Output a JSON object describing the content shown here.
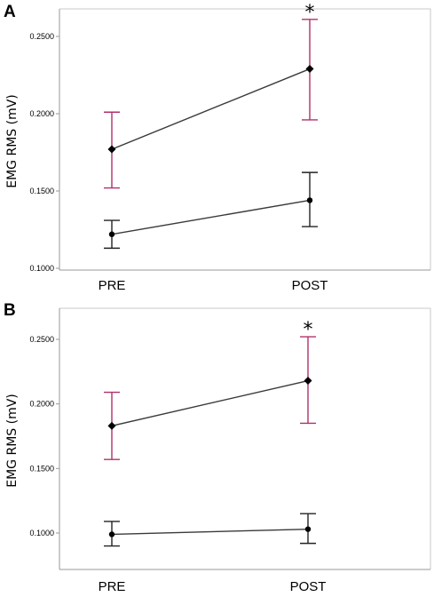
{
  "chart_data": [
    {
      "panel_label": "A",
      "type": "line",
      "ylabel": "EMG RMS (mV)",
      "categories": [
        "PRE",
        "POST"
      ],
      "yticks": [
        "0.1000",
        "0.1500",
        "0.2000",
        "0.2500"
      ],
      "ylim": [
        0.1,
        0.265
      ],
      "significance": [
        "",
        "*"
      ],
      "series": [
        {
          "marker": "diamond",
          "color": "#b0306a",
          "values": [
            0.177,
            0.229
          ],
          "err_low": [
            0.152,
            0.196
          ],
          "err_high": [
            0.201,
            0.261
          ]
        },
        {
          "marker": "circle",
          "color": "#222222",
          "values": [
            0.122,
            0.144
          ],
          "err_low": [
            0.113,
            0.127
          ],
          "err_high": [
            0.131,
            0.162
          ]
        }
      ]
    },
    {
      "panel_label": "B",
      "type": "line",
      "ylabel": "EMG RMS (mV)",
      "categories": [
        "PRE",
        "POST"
      ],
      "yticks": [
        "0.1000",
        "0.1500",
        "0.2000",
        "0.2500"
      ],
      "ylim": [
        0.08,
        0.265
      ],
      "significance": [
        "",
        "*"
      ],
      "series": [
        {
          "marker": "diamond",
          "color": "#b0306a",
          "values": [
            0.183,
            0.218
          ],
          "err_low": [
            0.157,
            0.185
          ],
          "err_high": [
            0.209,
            0.252
          ]
        },
        {
          "marker": "circle",
          "color": "#222222",
          "values": [
            0.099,
            0.103
          ],
          "err_low": [
            0.09,
            0.092
          ],
          "err_high": [
            0.109,
            0.115
          ]
        }
      ]
    }
  ]
}
